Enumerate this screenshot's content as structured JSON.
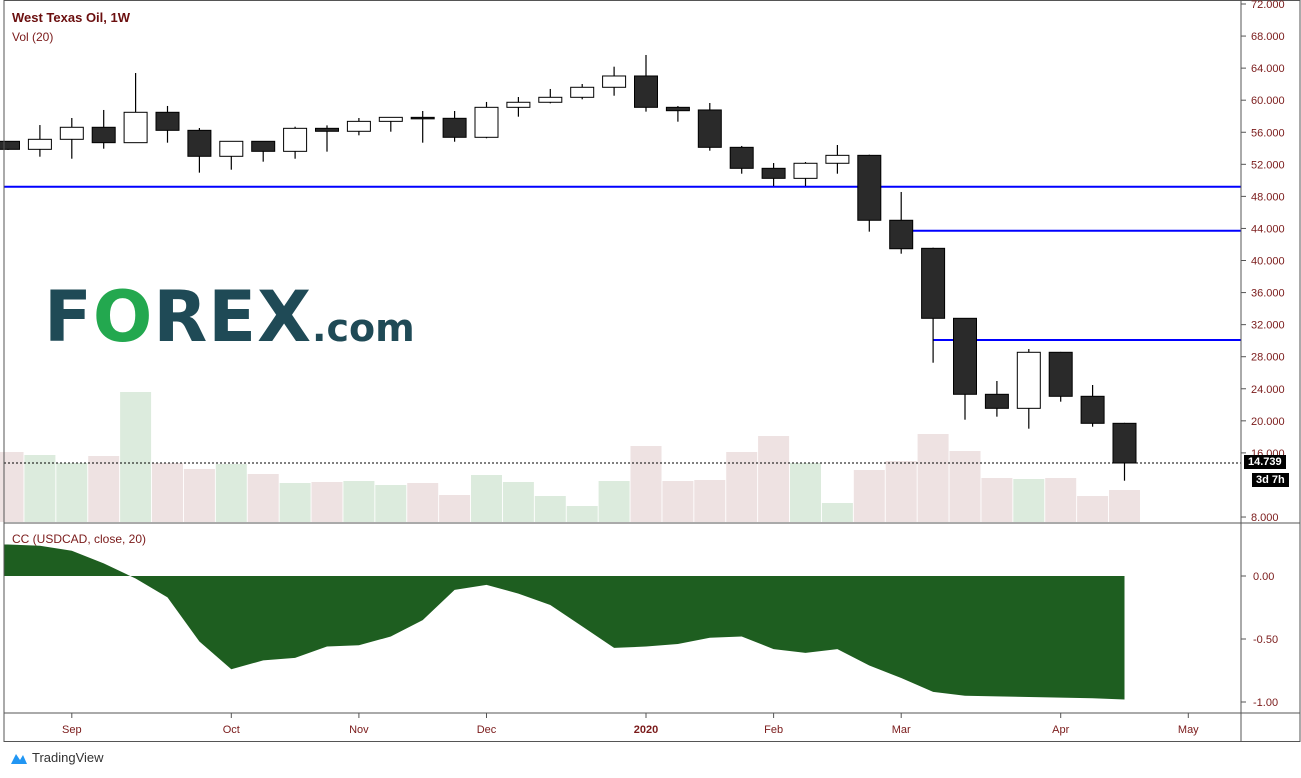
{
  "header": {
    "title": "West Texas Oil, 1W",
    "volume_label": "Vol (20)",
    "indicator_label": "CC (USDCAD, close, 20)"
  },
  "watermark": {
    "logo_text": "FOREX.com",
    "parts": [
      "F",
      "O",
      "REX",
      ".com"
    ]
  },
  "footer": {
    "brand": "TradingView"
  },
  "price_tag": {
    "last": "14.739",
    "countdown": "3d 7h"
  },
  "colors": {
    "up_volume": "#dcebdd",
    "down_volume": "#eee2e2",
    "candle_down": "#2a2a2a",
    "candle_up": "#ffffff",
    "levels": "#0000ff",
    "indicator": "#1e5e20",
    "text": "#7a1a1a"
  },
  "chart_data": {
    "type": "candlestick",
    "title": "West Texas Oil, 1W",
    "x_tick_labels": [
      "Sep",
      "Oct",
      "Nov",
      "Dec",
      "2020",
      "Feb",
      "Mar",
      "Apr",
      "May"
    ],
    "y_tick_labels": [
      "72.000",
      "68.000",
      "64.000",
      "60.000",
      "56.000",
      "52.000",
      "48.000",
      "44.000",
      "40.000",
      "36.000",
      "32.000",
      "28.000",
      "24.000",
      "20.000",
      "16.000",
      "8.000"
    ],
    "ylim": [
      8,
      72
    ],
    "weeks": [
      "2019-08-19",
      "2019-08-26",
      "2019-09-02",
      "2019-09-09",
      "2019-09-16",
      "2019-09-23",
      "2019-09-30",
      "2019-10-07",
      "2019-10-14",
      "2019-10-21",
      "2019-10-28",
      "2019-11-04",
      "2019-11-11",
      "2019-11-18",
      "2019-11-25",
      "2019-12-02",
      "2019-12-09",
      "2019-12-16",
      "2019-12-23",
      "2019-12-30",
      "2020-01-06",
      "2020-01-13",
      "2020-01-20",
      "2020-01-27",
      "2020-02-03",
      "2020-02-10",
      "2020-02-17",
      "2020-02-24",
      "2020-03-02",
      "2020-03-09",
      "2020-03-16",
      "2020-03-23",
      "2020-03-30",
      "2020-04-06",
      "2020-04-13",
      "2020-04-20"
    ],
    "ohlc": [
      [
        54.87,
        54.9,
        53.8,
        53.87
      ],
      [
        53.87,
        56.9,
        52.95,
        55.12
      ],
      [
        55.12,
        57.78,
        52.7,
        56.62
      ],
      [
        56.62,
        58.78,
        53.95,
        54.7
      ],
      [
        54.7,
        63.39,
        54.7,
        58.49
      ],
      [
        58.49,
        59.28,
        54.7,
        56.24
      ],
      [
        56.24,
        56.53,
        50.96,
        53.0
      ],
      [
        53.0,
        54.87,
        51.33,
        54.87
      ],
      [
        54.87,
        54.87,
        52.33,
        53.62
      ],
      [
        53.62,
        56.69,
        52.7,
        56.49
      ],
      [
        56.49,
        56.86,
        53.58,
        56.12
      ],
      [
        56.12,
        57.78,
        55.62,
        57.36
      ],
      [
        57.36,
        57.86,
        56.07,
        57.86
      ],
      [
        57.86,
        58.65,
        54.7,
        57.74
      ],
      [
        57.74,
        58.65,
        54.82,
        55.37
      ],
      [
        55.37,
        59.78,
        55.25,
        59.11
      ],
      [
        59.11,
        60.4,
        57.94,
        59.74
      ],
      [
        59.74,
        61.4,
        59.61,
        60.36
      ],
      [
        60.36,
        62.02,
        60.11,
        61.61
      ],
      [
        61.61,
        64.18,
        60.56,
        63.02
      ],
      [
        63.02,
        65.64,
        58.57,
        59.11
      ],
      [
        59.11,
        59.27,
        57.32,
        58.69
      ],
      [
        58.78,
        59.65,
        53.7,
        54.12
      ],
      [
        54.12,
        54.29,
        50.83,
        51.5
      ],
      [
        51.5,
        52.16,
        49.3,
        50.25
      ],
      [
        50.25,
        52.29,
        49.3,
        52.13
      ],
      [
        52.13,
        54.41,
        50.83,
        53.12
      ],
      [
        53.12,
        53.2,
        43.6,
        45.02
      ],
      [
        45.02,
        48.55,
        40.85,
        41.47
      ],
      [
        41.52,
        41.6,
        27.25,
        32.79
      ],
      [
        32.79,
        32.8,
        20.14,
        23.31
      ],
      [
        23.31,
        24.97,
        20.52,
        21.56
      ],
      [
        21.56,
        28.96,
        19.02,
        28.55
      ],
      [
        28.55,
        28.6,
        22.39,
        23.06
      ],
      [
        23.06,
        24.47,
        19.27,
        19.69
      ],
      [
        19.69,
        19.75,
        12.53,
        14.74
      ]
    ],
    "volume_relative": [
      70,
      67,
      59,
      66,
      130,
      59,
      53,
      58,
      48,
      39,
      40,
      41,
      37,
      39,
      27,
      47,
      40,
      26,
      16,
      41,
      76,
      41,
      42,
      70,
      86,
      59,
      19,
      52,
      61,
      88,
      71,
      44,
      43,
      44,
      26,
      32
    ],
    "horizontal_levels": [
      {
        "price": 49.2,
        "from_week": 0
      },
      {
        "price": 43.72,
        "from_week": 28
      },
      {
        "price": 30.08,
        "from_week": 29
      }
    ],
    "last_price": 14.739,
    "indicator": {
      "name": "CC (USDCAD, close, 20)",
      "type": "area",
      "ylim": [
        -1.0,
        0.25
      ],
      "y_tick_labels": [
        "0.00",
        "-0.50",
        "-1.00"
      ],
      "values": [
        0.25,
        0.24,
        0.2,
        0.1,
        -0.02,
        -0.17,
        -0.52,
        -0.74,
        -0.67,
        -0.65,
        -0.56,
        -0.55,
        -0.48,
        -0.35,
        -0.11,
        -0.07,
        -0.14,
        -0.23,
        -0.4,
        -0.57,
        -0.56,
        -0.54,
        -0.49,
        -0.48,
        -0.58,
        -0.61,
        -0.58,
        -0.71,
        -0.81,
        -0.92,
        -0.95,
        -0.955,
        -0.96,
        -0.965,
        -0.97,
        -0.98
      ]
    }
  }
}
